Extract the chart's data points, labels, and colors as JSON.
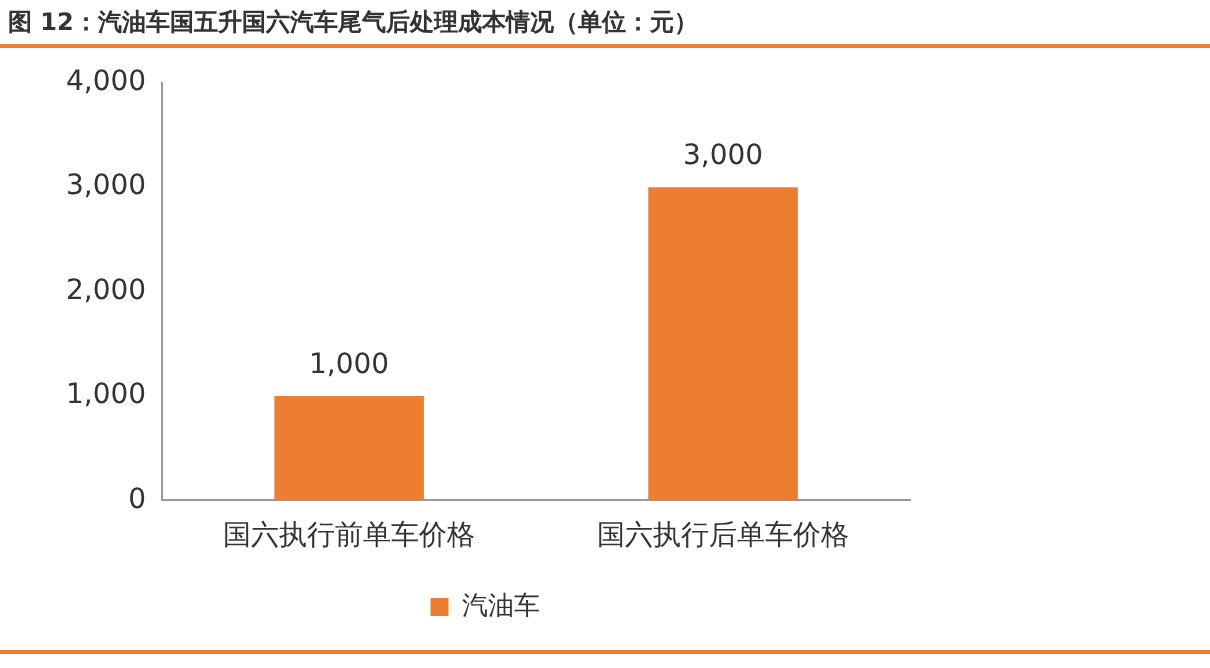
{
  "chart_data": {
    "type": "bar",
    "title": "图 12：汽油车国五升国六汽车尾气后处理成本情况（单位：元）",
    "categories": [
      "国六执行前单车价格",
      "国六执行后单车价格"
    ],
    "series": [
      {
        "name": "汽油车",
        "color": "#ed7d31",
        "values": [
          1000,
          3000
        ],
        "value_labels": [
          "1,000",
          "3,000"
        ]
      }
    ],
    "ylim": [
      0,
      4000
    ],
    "yticks": [
      {
        "value": 0,
        "label": "0"
      },
      {
        "value": 1000,
        "label": "1,000"
      },
      {
        "value": 2000,
        "label": "2,000"
      },
      {
        "value": 3000,
        "label": "3,000"
      },
      {
        "value": 4000,
        "label": "4,000"
      }
    ],
    "grid": false,
    "legend": "bottom"
  }
}
